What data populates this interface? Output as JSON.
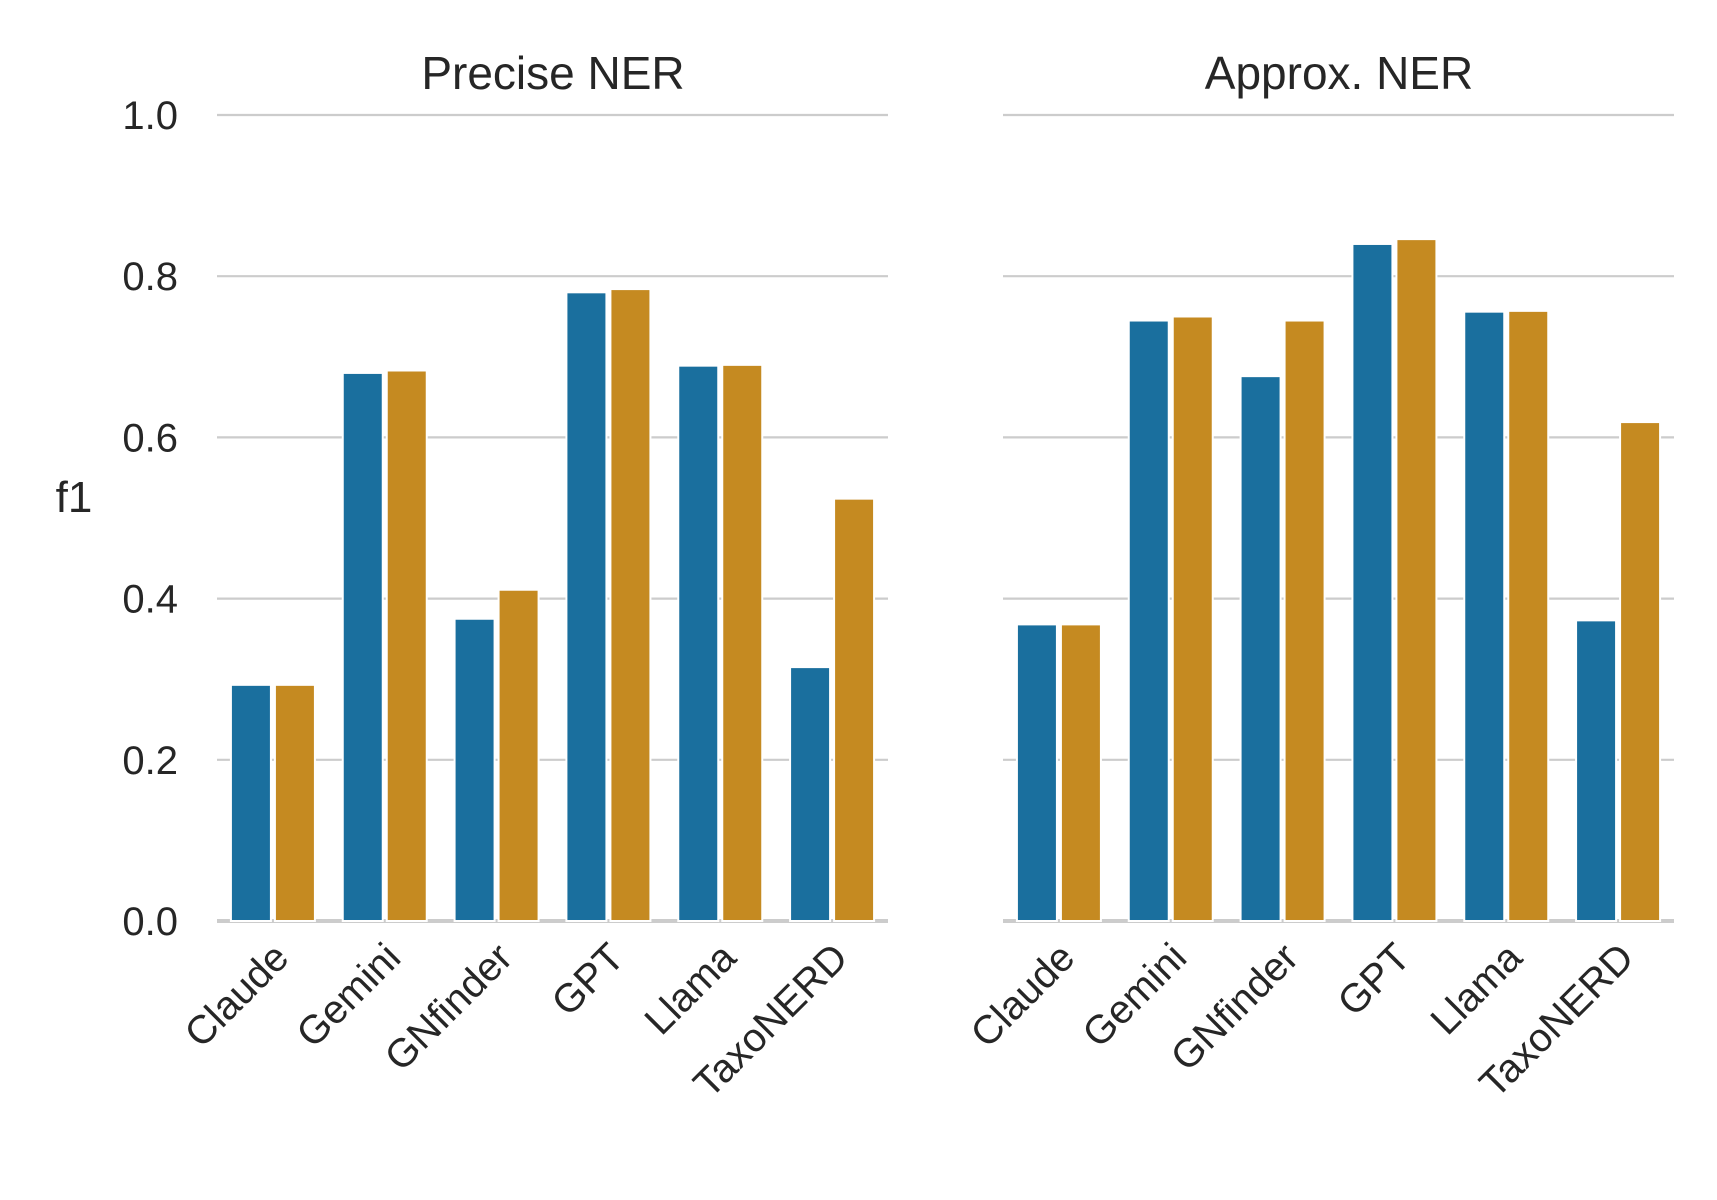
{
  "chart_data": [
    {
      "type": "bar",
      "title": "Precise NER",
      "ylabel": "f1",
      "ylim": [
        0,
        1.0
      ],
      "yticks": [
        "0.0",
        "0.2",
        "0.4",
        "0.6",
        "0.8",
        "1.0"
      ],
      "grid": true,
      "categories": [
        "Claude",
        "Gemini",
        "GNfinder",
        "GPT",
        "Llama",
        "TaxoNERD"
      ],
      "series": [
        {
          "values": [
            0.293,
            0.68,
            0.375,
            0.78,
            0.689,
            0.315
          ],
          "color": "#1a6f9e"
        },
        {
          "values": [
            0.293,
            0.683,
            0.411,
            0.784,
            0.69,
            0.524
          ],
          "color": "#c58a21"
        }
      ]
    },
    {
      "type": "bar",
      "title": "Approx. NER",
      "ylabel": "",
      "ylim": [
        0,
        1.0
      ],
      "yticks": [],
      "grid": true,
      "categories": [
        "Claude",
        "Gemini",
        "GNfinder",
        "GPT",
        "Llama",
        "TaxoNERD"
      ],
      "series": [
        {
          "values": [
            0.368,
            0.745,
            0.676,
            0.84,
            0.756,
            0.373
          ],
          "color": "#1a6f9e"
        },
        {
          "values": [
            0.368,
            0.75,
            0.745,
            0.846,
            0.757,
            0.619
          ],
          "color": "#c58a21"
        }
      ]
    }
  ]
}
